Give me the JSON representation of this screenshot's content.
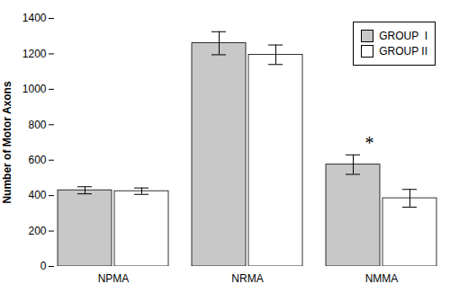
{
  "chart_data": {
    "type": "bar",
    "categories": [
      "NPMA",
      "NRMA",
      "NMMA"
    ],
    "series": [
      {
        "name": "GROUP  I",
        "color": "#c8c8c8",
        "values": [
          430,
          1260,
          575
        ],
        "errors": [
          20,
          65,
          55
        ]
      },
      {
        "name": "GROUP II",
        "color": "white",
        "values": [
          425,
          1195,
          385
        ],
        "errors": [
          18,
          55,
          50
        ]
      }
    ],
    "ylabel": "Number of Motor Axons",
    "ylim": [
      0,
      1400
    ],
    "yticks": [
      0,
      200,
      400,
      600,
      800,
      1000,
      1200,
      1400
    ],
    "annotations": [
      {
        "text": "*",
        "category": "NMMA",
        "series": "GROUP  I"
      }
    ],
    "legend": "upper right",
    "grid": false
  }
}
